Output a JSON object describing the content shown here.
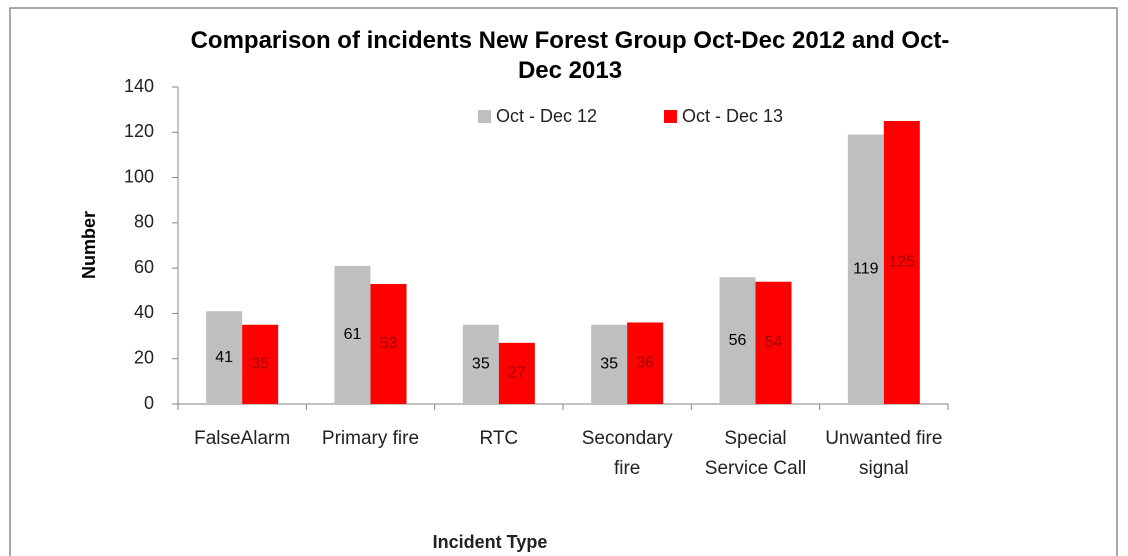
{
  "chart_data": {
    "type": "bar",
    "title": "Comparison of incidents New Forest Group Oct-Dec 2012 and Oct-Dec 2013",
    "x_label": "Incident Type",
    "y_label": "Number",
    "categories": [
      "FalseAlarm",
      "Primary fire",
      "RTC",
      "Secondary fire",
      "Special Service Call",
      "Unwanted fire signal"
    ],
    "series": [
      {
        "name": "Oct - Dec 12",
        "color": "#bfbfbf",
        "label_color": "#000000",
        "values": [
          41,
          61,
          35,
          35,
          56,
          119
        ]
      },
      {
        "name": "Oct - Dec 13",
        "color": "#ff0000",
        "label_color": "#a00000",
        "values": [
          35,
          53,
          27,
          36,
          54,
          125
        ]
      }
    ],
    "ylim": [
      0,
      140
    ],
    "yticks": [
      0,
      20,
      40,
      60,
      80,
      100,
      120,
      140
    ],
    "legend": "top",
    "grid": false
  }
}
